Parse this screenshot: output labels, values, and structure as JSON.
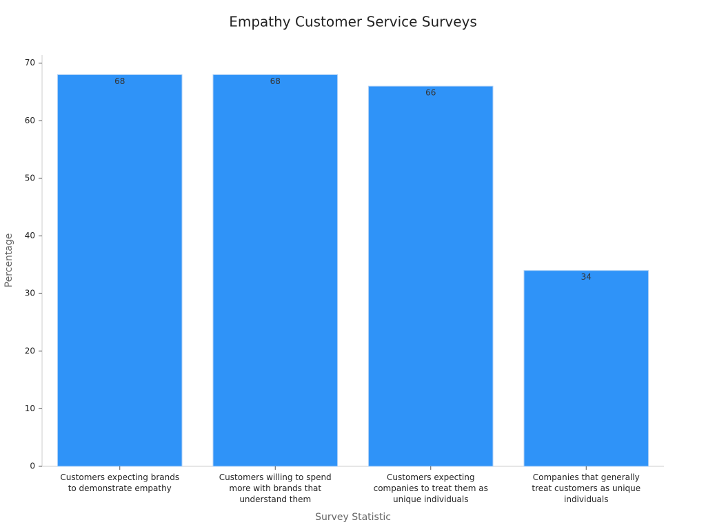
{
  "chart_data": {
    "type": "bar",
    "title": "Empathy Customer Service Surveys",
    "x_label": "Survey Statistic",
    "y_label": "Percentage",
    "categories": [
      "Customers expecting brands to demonstrate empathy",
      "Customers willing to spend more with brands that understand them",
      "Customers expecting companies to treat them as unique individuals",
      "Companies that generally treat customers as unique individuals"
    ],
    "values": [
      68,
      68,
      66,
      34
    ],
    "color": "#2f93f8",
    "ylim": [
      0,
      71.4
    ],
    "yticks": [
      0,
      10,
      20,
      30,
      40,
      50,
      60,
      70
    ],
    "grid": false
  }
}
